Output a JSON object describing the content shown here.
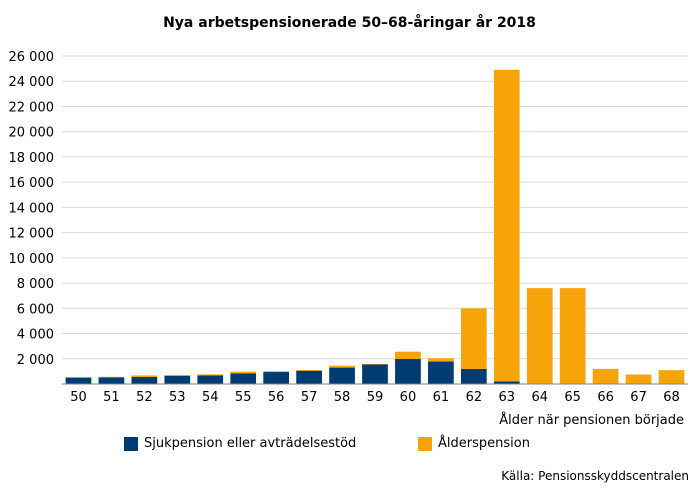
{
  "chart_data": {
    "type": "bar",
    "stacked": true,
    "title": "Nya arbetspensionerade 50–68-åringar år 2018",
    "xlabel": "Ålder när pensionen började",
    "ylabel": "",
    "ylim": [
      0,
      26000
    ],
    "yticks": [
      2000,
      4000,
      6000,
      8000,
      10000,
      12000,
      14000,
      16000,
      18000,
      20000,
      22000,
      24000,
      26000
    ],
    "ytick_labels": [
      "2 000",
      "4 000",
      "6 000",
      "8 000",
      "10 000",
      "12 000",
      "14 000",
      "16 000",
      "18 000",
      "20 000",
      "22 000",
      "24 000",
      "26 000"
    ],
    "categories": [
      "50",
      "51",
      "52",
      "53",
      "54",
      "55",
      "56",
      "57",
      "58",
      "59",
      "60",
      "61",
      "62",
      "63",
      "64",
      "65",
      "66",
      "67",
      "68"
    ],
    "series": [
      {
        "name": "Sjukpension eller avträdelsestöd",
        "color": "#003b71",
        "values": [
          500,
          520,
          560,
          650,
          680,
          850,
          950,
          1050,
          1300,
          1550,
          1980,
          1780,
          1200,
          200,
          0,
          0,
          0,
          0,
          0
        ]
      },
      {
        "name": "Ålderspension",
        "color": "#f7a30a",
        "values": [
          60,
          50,
          120,
          70,
          80,
          130,
          60,
          60,
          150,
          40,
          580,
          260,
          4800,
          24700,
          7600,
          7600,
          1200,
          750,
          1100
        ]
      }
    ],
    "legend_position": "bottom",
    "grid": true
  },
  "source": "Källa: Pensionsskyddscentralen"
}
